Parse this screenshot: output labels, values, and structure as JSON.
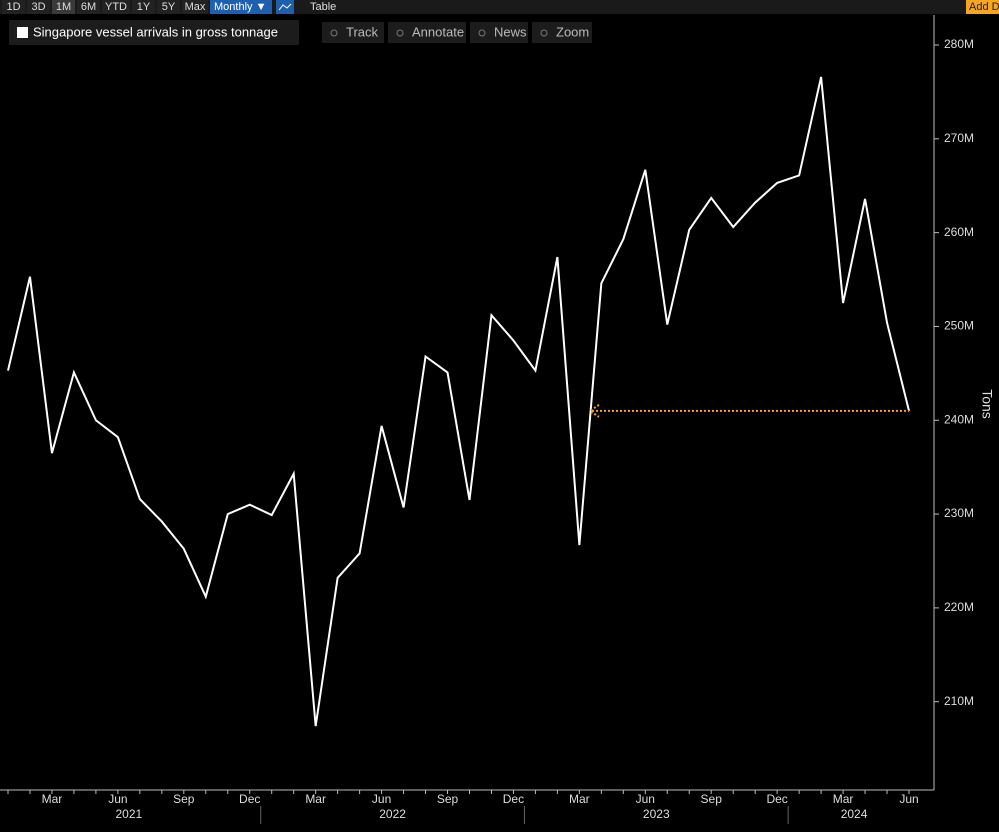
{
  "toolbar": {
    "ranges": [
      "1D",
      "3D",
      "1M",
      "6M",
      "YTD",
      "1Y",
      "5Y",
      "Max"
    ],
    "period": "Monthly ▼",
    "table": "Table",
    "add": "Add D"
  },
  "tools": [
    "Track",
    "Annotate",
    "News",
    "Zoom"
  ],
  "chart_data": {
    "type": "line",
    "y_label": "Tons",
    "categories": [
      null,
      null,
      "Mar",
      null,
      null,
      "Jun",
      null,
      null,
      "Sep",
      null,
      null,
      "Dec",
      null,
      null,
      "Mar",
      null,
      null,
      "Jun",
      null,
      null,
      "Sep",
      null,
      null,
      "Dec",
      null,
      null,
      "Mar",
      null,
      null,
      "Jun",
      null,
      null,
      "Sep",
      null,
      null,
      "Dec",
      null,
      null,
      "Mar",
      null,
      null,
      "Jun"
    ],
    "year_labels": [
      "2021",
      "2022",
      "2023",
      "2024"
    ],
    "series": [
      {
        "name": "Singapore vessel arrivals in gross tonnage",
        "color": "#ffffff",
        "values": [
          245.3,
          255.3,
          236.5,
          245.1,
          240.0,
          238.2,
          231.6,
          229.2,
          226.3,
          221.2,
          230.0,
          231.0,
          229.9,
          234.3,
          207.4,
          223.2,
          225.8,
          239.4,
          230.7,
          246.8,
          245.1,
          231.5,
          251.2,
          248.5,
          245.3,
          257.4,
          226.7,
          254.6,
          259.3,
          266.7,
          250.2,
          260.3,
          263.7,
          260.6,
          263.2,
          265.3,
          266.1,
          276.6,
          252.5,
          263.6,
          250.4,
          241.0
        ]
      }
    ],
    "ylim": [
      200.8,
      283.2
    ],
    "yticks": [
      {
        "value": 210,
        "label": "210M"
      },
      {
        "value": 220,
        "label": "220M"
      },
      {
        "value": 230,
        "label": "230M"
      },
      {
        "value": 240,
        "label": "240M"
      },
      {
        "value": 250,
        "label": "250M"
      },
      {
        "value": 260,
        "label": "260M"
      },
      {
        "value": 270,
        "label": "270M"
      },
      {
        "value": 280,
        "label": "280M"
      }
    ],
    "last_value_marker_color": "#f39c34"
  }
}
